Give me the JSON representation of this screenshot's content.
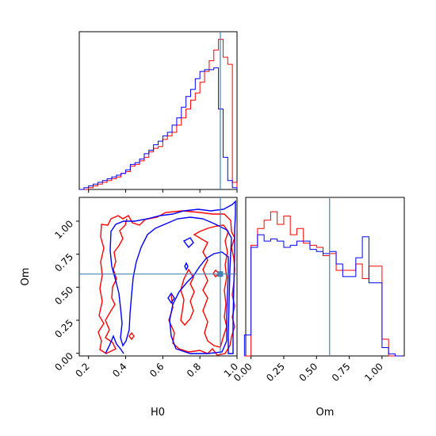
{
  "chart_data": {
    "type": "corner",
    "truth": {
      "H0": 0.91,
      "Om": 0.6
    },
    "colors": {
      "red": "#ff0000",
      "blue": "#0000ff",
      "truth": "#4682b4"
    },
    "x_axis_label_H0": "H0",
    "x_axis_label_Om": "Om",
    "y_axis_label_Om": "Om",
    "h0_range": [
      0.15,
      1.0
    ],
    "om_range": [
      -0.02,
      1.18
    ],
    "om_hist_range": [
      -0.04,
      1.17
    ],
    "h0_ticks": [
      "0.2",
      "0.4",
      "0.6",
      "0.8",
      "1.0"
    ],
    "om_ticks_y": [
      "0.00",
      "0.25",
      "0.50",
      "0.75",
      "1.00"
    ],
    "om_ticks_x": [
      "0.00",
      "0.25",
      "0.50",
      "0.75",
      "1.00"
    ],
    "h0_hist": {
      "bin_edges": [
        0.15,
        0.175,
        0.2,
        0.225,
        0.25,
        0.275,
        0.3,
        0.325,
        0.35,
        0.375,
        0.4,
        0.425,
        0.45,
        0.475,
        0.5,
        0.525,
        0.55,
        0.575,
        0.6,
        0.625,
        0.65,
        0.675,
        0.7,
        0.725,
        0.75,
        0.775,
        0.8,
        0.825,
        0.85,
        0.875,
        0.9,
        0.925,
        0.95,
        0.975,
        1.0
      ],
      "series": [
        {
          "name": "red",
          "counts": [
            0,
            0,
            1,
            2,
            3,
            4,
            5,
            6,
            7,
            9,
            10,
            13,
            14,
            16,
            18,
            21,
            23,
            24,
            28,
            30,
            32,
            36,
            40,
            45,
            50,
            54,
            60,
            66,
            72,
            78,
            84,
            74,
            70,
            4
          ]
        },
        {
          "name": "blue",
          "counts": [
            0,
            1,
            2,
            3,
            4,
            5,
            6,
            7,
            8,
            9,
            11,
            14,
            15,
            17,
            20,
            22,
            25,
            27,
            30,
            32,
            36,
            40,
            46,
            52,
            56,
            62,
            66,
            67,
            67,
            68,
            45,
            18,
            5,
            1
          ]
        }
      ]
    },
    "om_hist": {
      "bin_edges": [
        -0.05,
        0.0,
        0.05,
        0.1,
        0.15,
        0.2,
        0.25,
        0.3,
        0.35,
        0.4,
        0.45,
        0.5,
        0.55,
        0.6,
        0.65,
        0.7,
        0.75,
        0.8,
        0.85,
        0.9,
        0.95,
        1.0,
        1.05,
        1.1,
        1.15
      ],
      "series": [
        {
          "name": "red",
          "counts": [
            0,
            53,
            61,
            65,
            69,
            63,
            67,
            58,
            61,
            54,
            53,
            52,
            48,
            49,
            41,
            41,
            41,
            44,
            37,
            43,
            43,
            8,
            0,
            0
          ]
        },
        {
          "name": "blue",
          "counts": [
            10,
            52,
            58,
            55,
            56,
            55,
            52,
            53,
            55,
            55,
            51,
            50,
            49,
            50,
            44,
            38,
            38,
            47,
            57,
            35,
            35,
            4,
            1,
            0
          ]
        }
      ]
    }
  }
}
